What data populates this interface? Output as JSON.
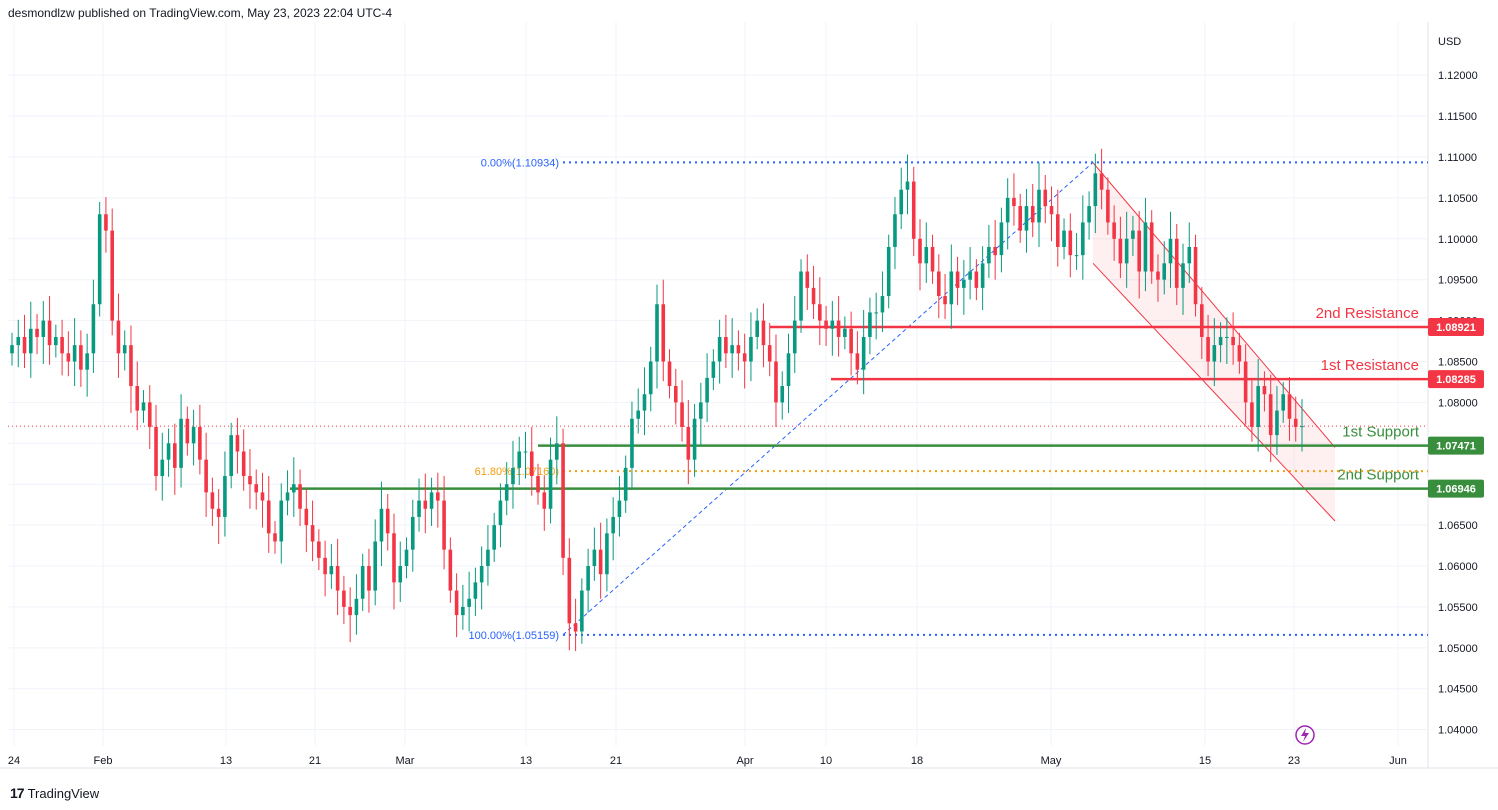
{
  "header": {
    "publisher_line": "desmondlzw published on TradingView.com, May 23, 2023 22:04 UTC-4"
  },
  "footer": {
    "brand": "TradingView"
  },
  "chart_data": {
    "type": "candlestick",
    "instrument_currency": "USD",
    "price_axis": {
      "ticks": [
        "1.12000",
        "1.11500",
        "1.11000",
        "1.10500",
        "1.10000",
        "1.09500",
        "1.09000",
        "1.08500",
        "1.08000",
        "1.07500",
        "1.07000",
        "1.06500",
        "1.06000",
        "1.05500",
        "1.05000",
        "1.04500",
        "1.04000"
      ],
      "range": [
        1.038,
        1.1265
      ]
    },
    "time_axis": {
      "ticks": [
        "24",
        "Feb",
        "13",
        "21",
        "Mar",
        "13",
        "21",
        "Apr",
        "10",
        "18",
        "May",
        "15",
        "23",
        "Jun"
      ]
    },
    "last_price": 1.0771,
    "fibonacci": [
      {
        "label": "0.00%(1.10934)",
        "price": 1.10934,
        "color": "#2962ff"
      },
      {
        "label": "61.80%(1.07160)",
        "price": 1.0716,
        "color": "#f59d0b"
      },
      {
        "label": "100.00%(1.05159)",
        "price": 1.05159,
        "color": "#2962ff"
      }
    ],
    "levels": [
      {
        "name": "2nd Resistance",
        "price_label": "1.08921",
        "price": 1.08921,
        "color": "#f23645"
      },
      {
        "name": "1st Resistance",
        "price_label": "1.08285",
        "price": 1.08285,
        "color": "#f23645"
      },
      {
        "name": "1st Support",
        "price_label": "1.07471",
        "price": 1.07471,
        "color": "#388e3c"
      },
      {
        "name": "2nd Support",
        "price_label": "1.06946",
        "price": 1.06946,
        "color": "#388e3c"
      }
    ],
    "channel": {
      "start": "May 4",
      "end": "May 26",
      "upper": [
        1.1093,
        1.0745
      ],
      "lower": [
        1.097,
        1.0655
      ]
    },
    "candles_close": [
      1.087,
      1.088,
      1.086,
      1.089,
      1.088,
      1.09,
      1.087,
      1.088,
      1.086,
      1.085,
      1.087,
      1.084,
      1.086,
      1.092,
      1.103,
      1.101,
      1.09,
      1.086,
      1.087,
      1.082,
      1.079,
      1.08,
      1.077,
      1.071,
      1.073,
      1.075,
      1.072,
      1.078,
      1.075,
      1.077,
      1.073,
      1.069,
      1.067,
      1.066,
      1.071,
      1.076,
      1.074,
      1.071,
      1.07,
      1.069,
      1.068,
      1.064,
      1.063,
      1.068,
      1.069,
      1.07,
      1.067,
      1.065,
      1.063,
      1.061,
      1.059,
      1.06,
      1.057,
      1.055,
      1.054,
      1.056,
      1.06,
      1.057,
      1.063,
      1.067,
      1.064,
      1.058,
      1.06,
      1.062,
      1.066,
      1.068,
      1.067,
      1.069,
      1.068,
      1.062,
      1.057,
      1.054,
      1.055,
      1.056,
      1.058,
      1.06,
      1.062,
      1.065,
      1.068,
      1.07,
      1.072,
      1.074,
      1.074,
      1.071,
      1.069,
      1.067,
      1.073,
      1.075,
      1.061,
      1.053,
      1.052,
      1.057,
      1.06,
      1.062,
      1.059,
      1.064,
      1.066,
      1.068,
      1.072,
      1.078,
      1.079,
      1.081,
      1.085,
      1.092,
      1.085,
      1.082,
      1.08,
      1.077,
      1.073,
      1.078,
      1.08,
      1.083,
      1.085,
      1.088,
      1.086,
      1.087,
      1.086,
      1.085,
      1.088,
      1.09,
      1.087,
      1.085,
      1.08,
      1.082,
      1.086,
      1.09,
      1.096,
      1.094,
      1.092,
      1.09,
      1.089,
      1.09,
      1.088,
      1.089,
      1.086,
      1.084,
      1.088,
      1.091,
      1.091,
      1.093,
      1.099,
      1.103,
      1.106,
      1.107,
      1.1,
      1.097,
      1.099,
      1.096,
      1.093,
      1.092,
      1.096,
      1.094,
      1.095,
      1.096,
      1.094,
      1.097,
      1.099,
      1.098,
      1.102,
      1.105,
      1.104,
      1.101,
      1.104,
      1.102,
      1.106,
      1.104,
      1.103,
      1.099,
      1.101,
      1.098,
      1.098,
      1.102,
      1.104,
      1.108,
      1.106,
      1.102,
      1.1,
      1.097,
      1.1,
      1.101,
      1.096,
      1.102,
      1.096,
      1.095,
      1.097,
      1.1,
      1.094,
      1.097,
      1.099,
      1.092,
      1.088,
      1.085,
      1.087,
      1.088,
      1.088,
      1.087,
      1.085,
      1.08,
      1.077,
      1.082,
      1.081,
      1.076,
      1.079,
      1.081,
      1.078,
      1.077,
      1.0771
    ]
  }
}
